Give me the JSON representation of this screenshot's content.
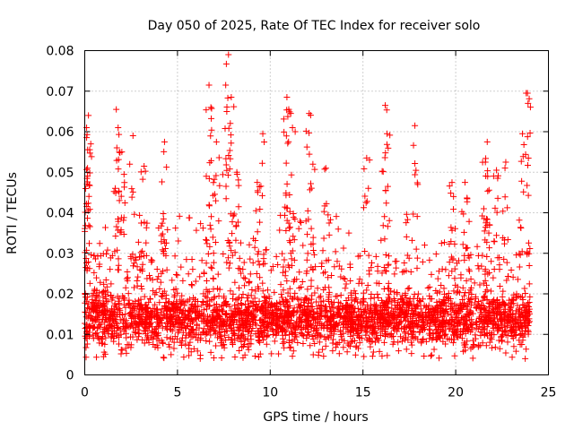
{
  "chart_data": {
    "type": "scatter",
    "title": "Day 050 of 2025, Rate Of TEC Index for receiver solo",
    "xlabel": "GPS time / hours",
    "ylabel": "ROTI / TECUs",
    "xlim": [
      0,
      25
    ],
    "ylim": [
      0,
      0.08
    ],
    "xticks": [
      0,
      5,
      10,
      15,
      20,
      25
    ],
    "xtick_labels": [
      "0",
      "5",
      "10",
      "15",
      "20",
      "25"
    ],
    "yticks": [
      0,
      0.01,
      0.02,
      0.03,
      0.04,
      0.05,
      0.06,
      0.07,
      0.08
    ],
    "ytick_labels": [
      "0",
      "0.01",
      "0.02",
      "0.03",
      "0.04",
      "0.05",
      "0.06",
      "0.07",
      "0.08"
    ],
    "grid": true,
    "marker": "+",
    "color": "#ff0000",
    "series": [
      {
        "name": "ROTI",
        "x_range": [
          0,
          24
        ],
        "typical_range": [
          0.004,
          0.035
        ],
        "dense_band": [
          0.008,
          0.02
        ],
        "peaks": [
          {
            "x": 0.2,
            "y": 0.064
          },
          {
            "x": 0.1,
            "y": 0.061
          },
          {
            "x": 0.15,
            "y": 0.051
          },
          {
            "x": 1.7,
            "y": 0.0655
          },
          {
            "x": 1.8,
            "y": 0.061
          },
          {
            "x": 2.0,
            "y": 0.055
          },
          {
            "x": 2.6,
            "y": 0.059
          },
          {
            "x": 3.2,
            "y": 0.0515
          },
          {
            "x": 4.3,
            "y": 0.0575
          },
          {
            "x": 6.7,
            "y": 0.0715
          },
          {
            "x": 6.8,
            "y": 0.066
          },
          {
            "x": 7.1,
            "y": 0.0575
          },
          {
            "x": 7.6,
            "y": 0.0715
          },
          {
            "x": 7.75,
            "y": 0.079
          },
          {
            "x": 7.9,
            "y": 0.0685
          },
          {
            "x": 8.2,
            "y": 0.05
          },
          {
            "x": 9.6,
            "y": 0.0595
          },
          {
            "x": 9.3,
            "y": 0.0475
          },
          {
            "x": 10.9,
            "y": 0.0685
          },
          {
            "x": 11.0,
            "y": 0.0655
          },
          {
            "x": 11.2,
            "y": 0.061
          },
          {
            "x": 12.1,
            "y": 0.0645
          },
          {
            "x": 12.3,
            "y": 0.052
          },
          {
            "x": 13.0,
            "y": 0.051
          },
          {
            "x": 15.2,
            "y": 0.0535
          },
          {
            "x": 16.2,
            "y": 0.0665
          },
          {
            "x": 16.3,
            "y": 0.0595
          },
          {
            "x": 17.8,
            "y": 0.0615
          },
          {
            "x": 19.8,
            "y": 0.0475
          },
          {
            "x": 20.5,
            "y": 0.0475
          },
          {
            "x": 21.7,
            "y": 0.0575
          },
          {
            "x": 21.6,
            "y": 0.0525
          },
          {
            "x": 22.2,
            "y": 0.0505
          },
          {
            "x": 22.7,
            "y": 0.0525
          },
          {
            "x": 23.6,
            "y": 0.0595
          },
          {
            "x": 23.8,
            "y": 0.0695
          },
          {
            "x": 23.9,
            "y": 0.067
          }
        ]
      }
    ]
  }
}
